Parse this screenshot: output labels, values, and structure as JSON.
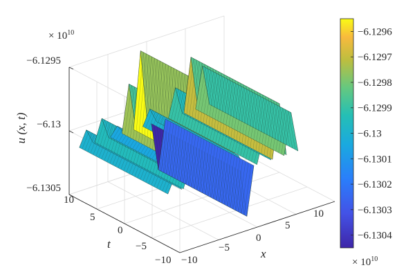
{
  "chart_data": {
    "type": "surface",
    "zlabel": "u (x, t)",
    "xlabel": "x",
    "ylabel": "t",
    "xlim": [
      -10,
      10
    ],
    "ylim": [
      -10,
      10
    ],
    "zlim": [
      -6.1305,
      -6.1295
    ],
    "x_ticks": [
      "−10",
      "−5",
      "0",
      "5",
      "10"
    ],
    "y_ticks": [
      "−10",
      "−5",
      "0",
      "5",
      "10"
    ],
    "z_ticks": [
      "−6.1305",
      "−6.13",
      "−6.1295"
    ],
    "z_multiplier": "× 10",
    "z_multiplier_exponent": "10",
    "grid": true,
    "colormap": "parula",
    "colorbar": {
      "ticks": [
        "−6.1296",
        "−6.1297",
        "−6.1298",
        "−6.1299",
        "−6.13",
        "−6.1301",
        "−6.1302",
        "−6.1303",
        "−6.1304"
      ],
      "multiplier": "× 10",
      "multiplier_exponent": "10",
      "range": [
        -6.13045,
        -6.12955
      ],
      "placement": "right"
    },
    "surface_note": "Waveform ridges aligned along t: central sharp spike near x≈0, narrower ridges at x≈-5 and x≈5, oscillating near the mean.",
    "ridges": [
      {
        "x": -8.5,
        "z": -6.13
      },
      {
        "x": -6.5,
        "z": -6.12995
      },
      {
        "x": -4.5,
        "z": -6.13005
      },
      {
        "x": -3.0,
        "z": -6.12975
      },
      {
        "x": -1.5,
        "z": -6.12952
      },
      {
        "x": -0.3,
        "z": -6.13
      },
      {
        "x": 0.8,
        "z": -6.1305
      },
      {
        "x": 3.0,
        "z": -6.1299
      },
      {
        "x": 5.0,
        "z": -6.1297
      },
      {
        "x": 6.5,
        "z": -6.1298
      }
    ]
  }
}
